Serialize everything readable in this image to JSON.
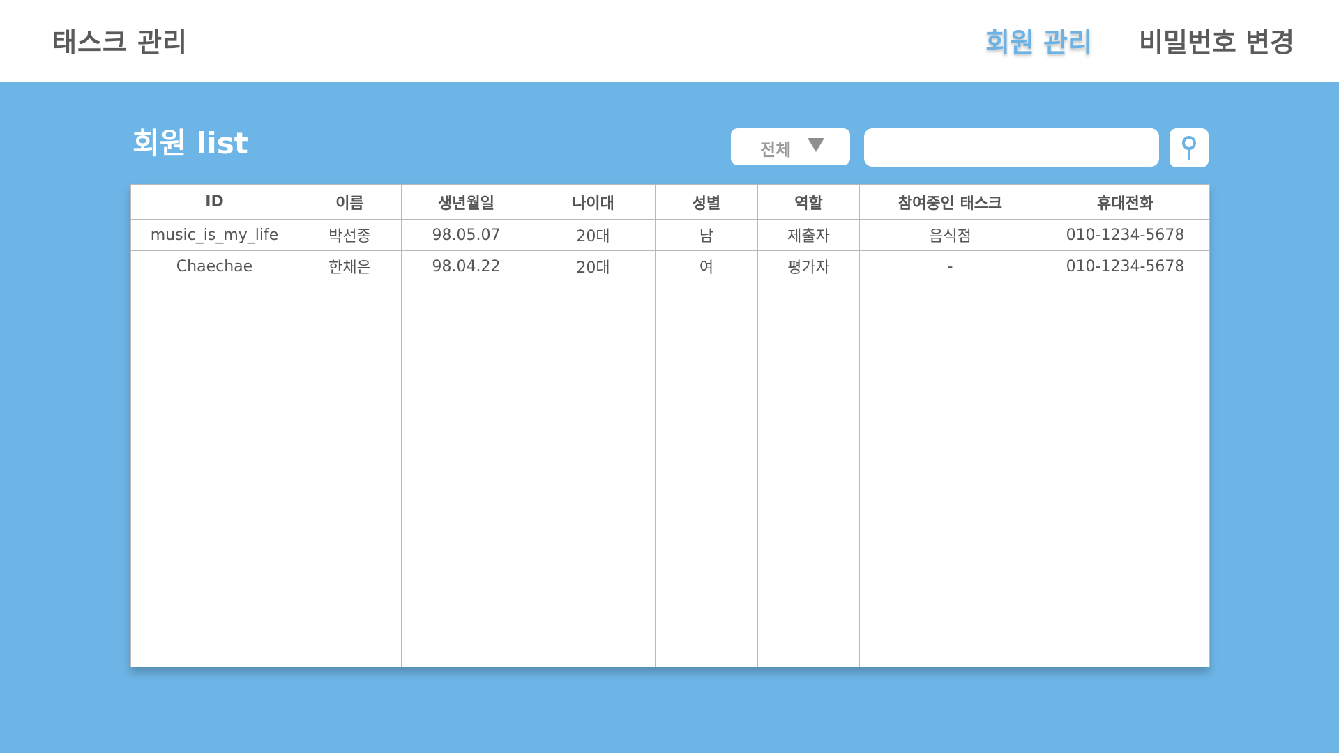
{
  "header": {
    "brand": "태스크 관리",
    "nav": {
      "members": "회원 관리",
      "password": "비밀번호 변경"
    }
  },
  "main": {
    "title": "회원 list",
    "filter": {
      "selected": "전체"
    },
    "search": {
      "value": "",
      "placeholder": ""
    }
  },
  "table": {
    "columns": [
      "ID",
      "이름",
      "생년월일",
      "나이대",
      "성별",
      "역할",
      "참여중인 태스크",
      "휴대전화"
    ],
    "rows": [
      [
        "music_is_my_life",
        "박선종",
        "98.05.07",
        "20대",
        "남",
        "제출자",
        "음식점",
        "010-1234-5678"
      ],
      [
        "Chaechae",
        "한채은",
        "98.04.22",
        "20대",
        "여",
        "평가자",
        "-",
        "010-1234-5678"
      ]
    ]
  },
  "colors": {
    "background": "#6db5e6",
    "accent": "#6cb2e4",
    "text": "#5a5a5a"
  },
  "icons": {
    "search": "search-icon",
    "dropdown": "triangle-down-icon"
  }
}
